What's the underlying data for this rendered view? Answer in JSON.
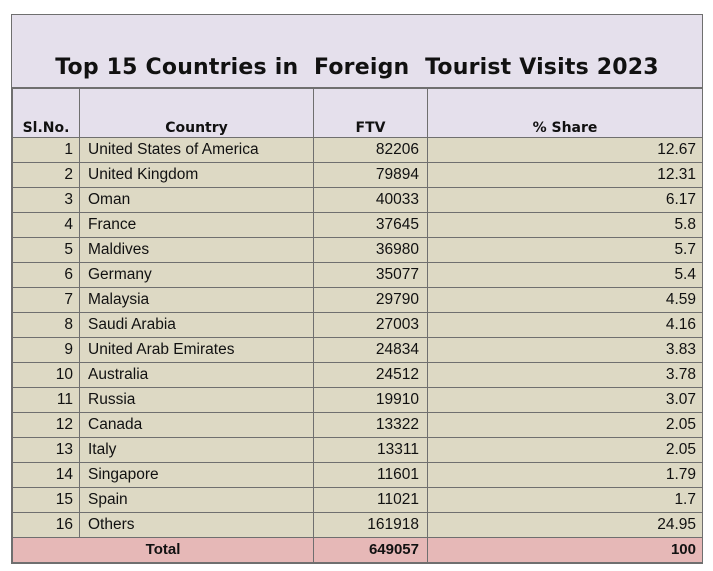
{
  "title": "Top 15 Countries in  Foreign  Tourist Visits 2023",
  "headers": {
    "sl": "Sl.No.",
    "country": "Country",
    "ftv": "FTV",
    "share": "% Share"
  },
  "rows": [
    {
      "sl": "1",
      "country": "United States of America",
      "ftv": "82206",
      "share": "12.67"
    },
    {
      "sl": "2",
      "country": "United Kingdom",
      "ftv": "79894",
      "share": "12.31"
    },
    {
      "sl": "3",
      "country": "Oman",
      "ftv": "40033",
      "share": "6.17"
    },
    {
      "sl": "4",
      "country": "France",
      "ftv": "37645",
      "share": "5.8"
    },
    {
      "sl": "5",
      "country": "Maldives",
      "ftv": "36980",
      "share": "5.7"
    },
    {
      "sl": "6",
      "country": "Germany",
      "ftv": "35077",
      "share": "5.4"
    },
    {
      "sl": "7",
      "country": "Malaysia",
      "ftv": "29790",
      "share": "4.59"
    },
    {
      "sl": "8",
      "country": "Saudi Arabia",
      "ftv": "27003",
      "share": "4.16"
    },
    {
      "sl": "9",
      "country": "United Arab Emirates",
      "ftv": "24834",
      "share": "3.83"
    },
    {
      "sl": "10",
      "country": "Australia",
      "ftv": "24512",
      "share": "3.78"
    },
    {
      "sl": "11",
      "country": "Russia",
      "ftv": "19910",
      "share": "3.07"
    },
    {
      "sl": "12",
      "country": "Canada",
      "ftv": "13322",
      "share": "2.05"
    },
    {
      "sl": "13",
      "country": "Italy",
      "ftv": "13311",
      "share": "2.05"
    },
    {
      "sl": "14",
      "country": "Singapore",
      "ftv": "11601",
      "share": "1.79"
    },
    {
      "sl": "15",
      "country": "Spain",
      "ftv": "11021",
      "share": "1.7"
    },
    {
      "sl": "16",
      "country": "Others",
      "ftv": "161918",
      "share": "24.95"
    }
  ],
  "total": {
    "label": "Total",
    "ftv": "649057",
    "share": "100"
  },
  "colors": {
    "header_bg": "#e5e0ec",
    "row_bg": "#ddd9c4",
    "total_bg": "#e6b8b7",
    "border": "#6f6f6f"
  }
}
